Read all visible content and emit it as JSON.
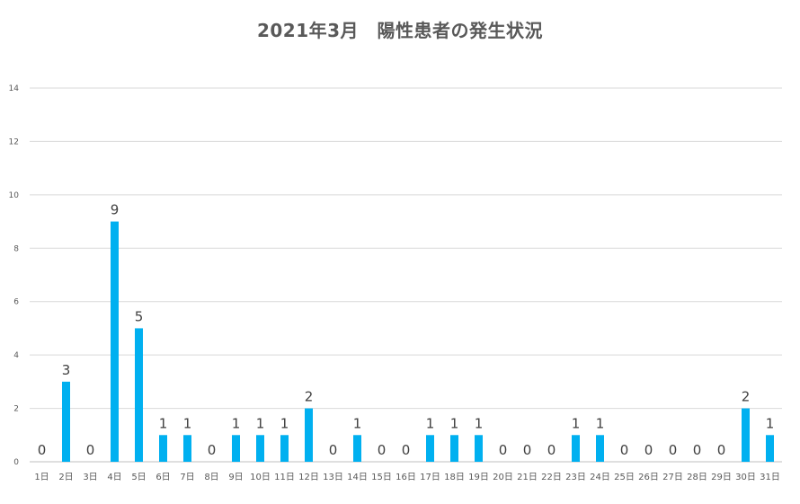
{
  "chart_data": {
    "type": "bar",
    "title": "2021年3月　陽性患者の発生状況",
    "xlabel": "",
    "ylabel": "",
    "ylim": [
      0,
      14
    ],
    "yticks": [
      0,
      2,
      4,
      6,
      8,
      10,
      12,
      14
    ],
    "grid": true,
    "legend": "none",
    "bar_color": "#00b0f0",
    "categories": [
      "1日",
      "2日",
      "3日",
      "4日",
      "5日",
      "6日",
      "7日",
      "8日",
      "9日",
      "10日",
      "11日",
      "12日",
      "13日",
      "14日",
      "15日",
      "16日",
      "17日",
      "18日",
      "19日",
      "20日",
      "21日",
      "22日",
      "23日",
      "24日",
      "25日",
      "26日",
      "27日",
      "28日",
      "29日",
      "30日",
      "31日"
    ],
    "values": [
      0,
      3,
      0,
      9,
      5,
      1,
      1,
      0,
      1,
      1,
      1,
      2,
      0,
      1,
      0,
      0,
      1,
      1,
      1,
      0,
      0,
      0,
      1,
      1,
      0,
      0,
      0,
      0,
      0,
      2,
      1
    ]
  }
}
